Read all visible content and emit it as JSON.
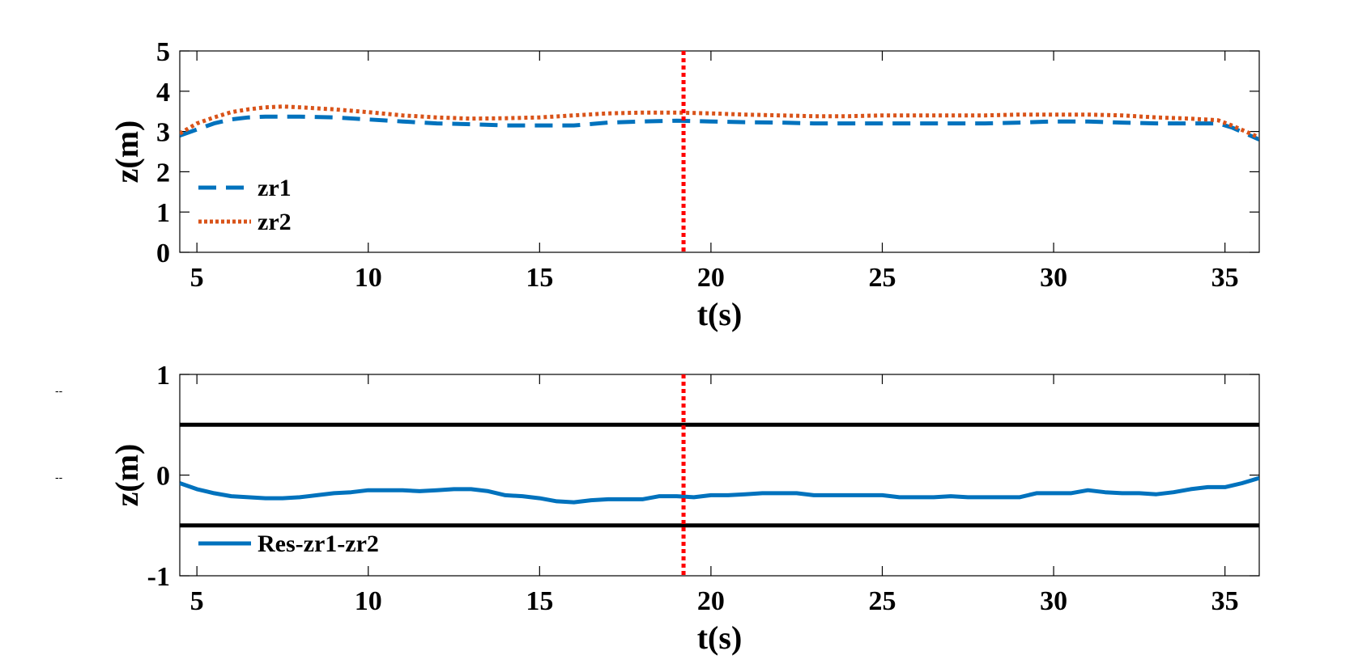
{
  "side_marks": [
    "--",
    "--"
  ],
  "chart_data": [
    {
      "type": "line",
      "xlabel": "t(s)",
      "ylabel": "z(m)",
      "xlim": [
        4.5,
        36
      ],
      "ylim": [
        0,
        5
      ],
      "xticks": [
        5,
        10,
        15,
        20,
        25,
        30,
        35
      ],
      "yticks": [
        0,
        1,
        2,
        3,
        4,
        5
      ],
      "grid": false,
      "legend_position": "bottom-left",
      "vline": {
        "x": 19.2,
        "color": "#ff0000",
        "style": "dotted"
      },
      "series": [
        {
          "name": "zr1",
          "color": "#0072BD",
          "style": "dashed",
          "x": [
            4.5,
            5,
            5.5,
            6,
            6.5,
            7,
            8,
            9,
            10,
            11,
            12,
            13,
            14,
            15,
            16,
            17,
            18,
            19,
            20,
            21,
            22,
            23,
            24,
            25,
            26,
            27,
            28,
            29,
            30,
            31,
            32,
            33,
            34,
            34.8,
            35.2,
            35.6,
            36
          ],
          "y": [
            2.9,
            3.05,
            3.2,
            3.3,
            3.35,
            3.37,
            3.37,
            3.35,
            3.3,
            3.25,
            3.2,
            3.18,
            3.15,
            3.15,
            3.15,
            3.22,
            3.25,
            3.27,
            3.25,
            3.23,
            3.22,
            3.2,
            3.2,
            3.2,
            3.2,
            3.2,
            3.2,
            3.22,
            3.25,
            3.25,
            3.22,
            3.2,
            3.2,
            3.2,
            3.1,
            2.95,
            2.8
          ]
        },
        {
          "name": "zr2",
          "color": "#D95319",
          "style": "dotted",
          "x": [
            4.5,
            5,
            5.5,
            6,
            6.5,
            7,
            7.5,
            8,
            9,
            10,
            11,
            12,
            13,
            14,
            15,
            16,
            17,
            18,
            19,
            20,
            21,
            22,
            23,
            24,
            25,
            26,
            27,
            28,
            29,
            30,
            31,
            32,
            33,
            34,
            34.8,
            35.2,
            35.6,
            36
          ],
          "y": [
            2.95,
            3.2,
            3.35,
            3.48,
            3.55,
            3.6,
            3.62,
            3.6,
            3.55,
            3.48,
            3.4,
            3.35,
            3.32,
            3.33,
            3.35,
            3.4,
            3.45,
            3.47,
            3.47,
            3.45,
            3.42,
            3.4,
            3.38,
            3.38,
            3.4,
            3.4,
            3.4,
            3.4,
            3.42,
            3.42,
            3.42,
            3.4,
            3.35,
            3.32,
            3.28,
            3.15,
            3.0,
            2.85
          ]
        }
      ]
    },
    {
      "type": "line",
      "xlabel": "t(s)",
      "ylabel": "z(m)",
      "xlim": [
        4.5,
        36
      ],
      "ylim": [
        -1,
        1
      ],
      "xticks": [
        5,
        10,
        15,
        20,
        25,
        30,
        35
      ],
      "yticks": [
        -1,
        0,
        1
      ],
      "grid": false,
      "legend_position": "bottom-left",
      "vline": {
        "x": 19.2,
        "color": "#ff0000",
        "style": "dotted"
      },
      "hlines": [
        {
          "y": 0.5,
          "color": "#000000"
        },
        {
          "y": -0.5,
          "color": "#000000"
        }
      ],
      "series": [
        {
          "name": "Res-zr1-zr2",
          "color": "#0072BD",
          "style": "solid",
          "x": [
            4.5,
            5,
            5.5,
            6,
            6.5,
            7,
            7.5,
            8,
            8.5,
            9,
            9.5,
            10,
            10.5,
            11,
            11.5,
            12,
            12.5,
            13,
            13.5,
            14,
            14.5,
            15,
            15.5,
            16,
            16.5,
            17,
            17.5,
            18,
            18.5,
            19,
            19.5,
            20,
            20.5,
            21,
            21.5,
            22,
            22.5,
            23,
            23.5,
            24,
            24.5,
            25,
            25.5,
            26,
            26.5,
            27,
            27.5,
            28,
            28.5,
            29,
            29.5,
            30,
            30.5,
            31,
            31.5,
            32,
            32.5,
            33,
            33.5,
            34,
            34.5,
            35,
            35.5,
            36
          ],
          "y": [
            -0.08,
            -0.14,
            -0.18,
            -0.21,
            -0.22,
            -0.23,
            -0.23,
            -0.22,
            -0.2,
            -0.18,
            -0.17,
            -0.15,
            -0.15,
            -0.15,
            -0.16,
            -0.15,
            -0.14,
            -0.14,
            -0.16,
            -0.2,
            -0.21,
            -0.23,
            -0.26,
            -0.27,
            -0.25,
            -0.24,
            -0.24,
            -0.24,
            -0.21,
            -0.21,
            -0.22,
            -0.2,
            -0.2,
            -0.19,
            -0.18,
            -0.18,
            -0.18,
            -0.2,
            -0.2,
            -0.2,
            -0.2,
            -0.2,
            -0.22,
            -0.22,
            -0.22,
            -0.21,
            -0.22,
            -0.22,
            -0.22,
            -0.22,
            -0.18,
            -0.18,
            -0.18,
            -0.15,
            -0.17,
            -0.18,
            -0.18,
            -0.19,
            -0.17,
            -0.14,
            -0.12,
            -0.12,
            -0.08,
            -0.03
          ]
        }
      ]
    }
  ]
}
